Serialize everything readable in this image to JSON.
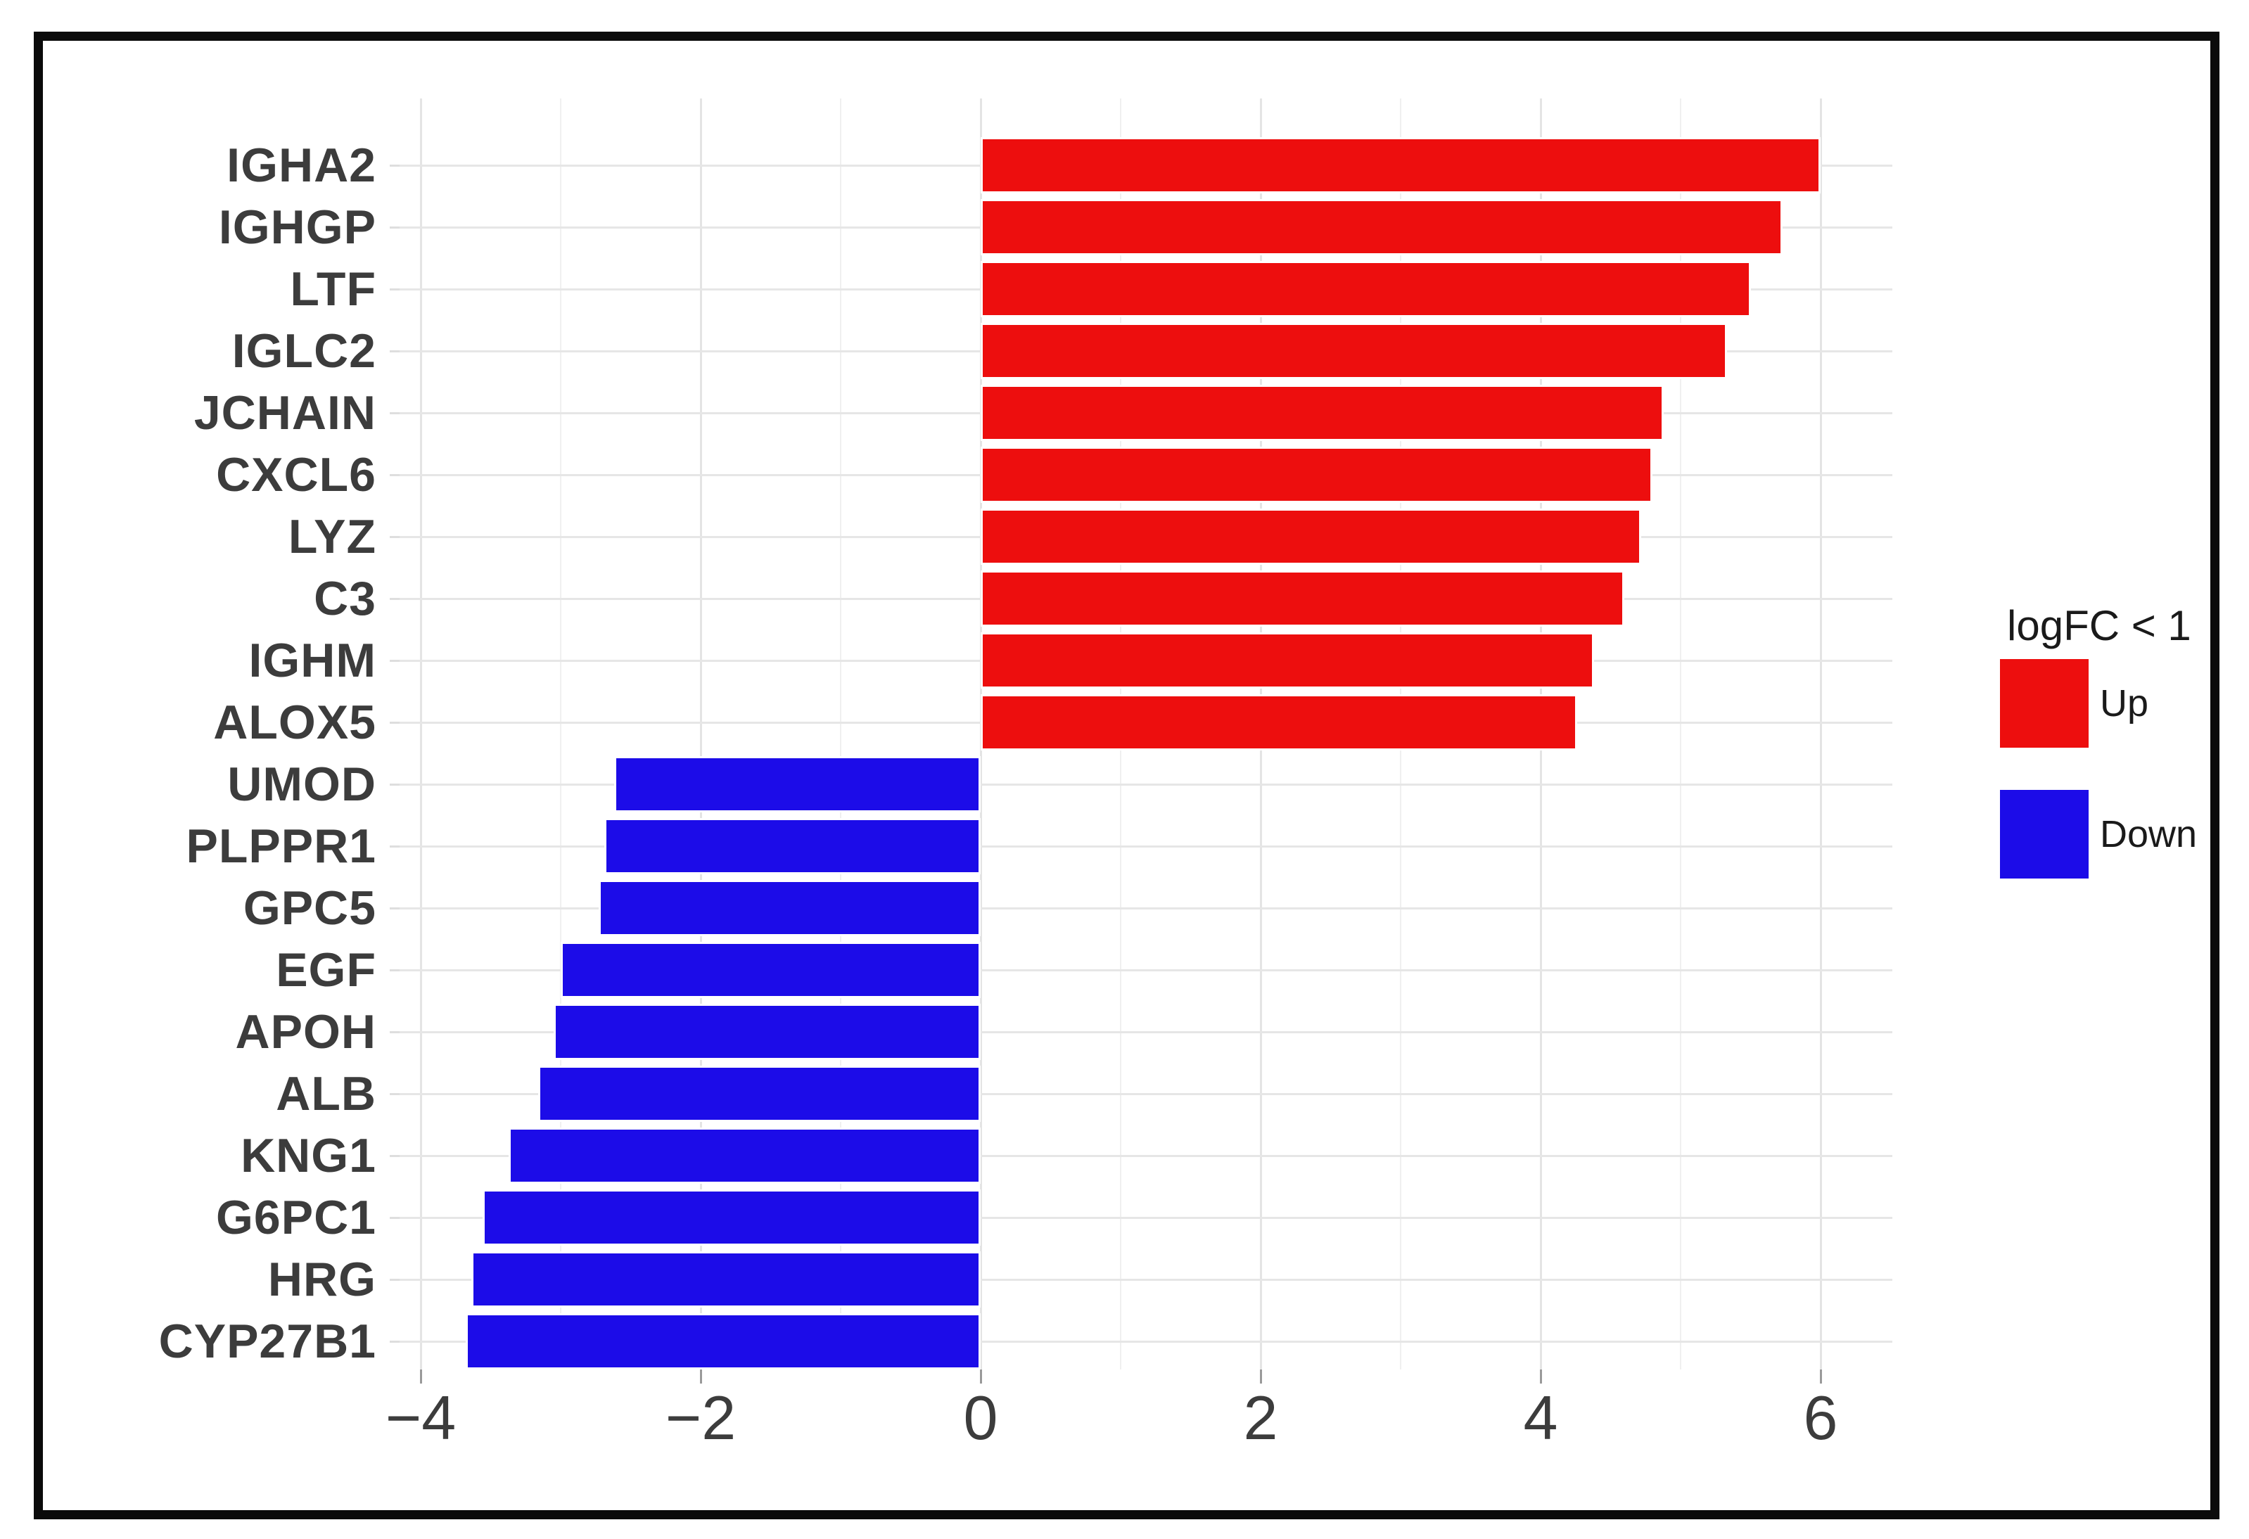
{
  "chart_data": {
    "type": "bar",
    "orientation": "horizontal",
    "title": "",
    "xlabel": "",
    "ylabel": "",
    "categories": [
      "IGHA2",
      "IGHGP",
      "LTF",
      "IGLC2",
      "JCHAIN",
      "CXCL6",
      "LYZ",
      "C3",
      "IGHM",
      "ALOX5",
      "UMOD",
      "PLPPR1",
      "GPC5",
      "EGF",
      "APOH",
      "ALB",
      "KNG1",
      "G6PC1",
      "HRG",
      "CYP27B1"
    ],
    "values": [
      6.0,
      5.73,
      5.5,
      5.33,
      4.88,
      4.8,
      4.72,
      4.6,
      4.38,
      4.26,
      -2.62,
      -2.69,
      -2.73,
      -3.0,
      -3.05,
      -3.16,
      -3.37,
      -3.56,
      -3.64,
      -3.68
    ],
    "groups": [
      "Up",
      "Up",
      "Up",
      "Up",
      "Up",
      "Up",
      "Up",
      "Up",
      "Up",
      "Up",
      "Down",
      "Down",
      "Down",
      "Down",
      "Down",
      "Down",
      "Down",
      "Down",
      "Down",
      "Down"
    ],
    "x_ticks": [
      -4,
      -2,
      0,
      2,
      4,
      6
    ],
    "x_tick_labels": [
      "−4",
      "−2",
      "0",
      "2",
      "4",
      "6"
    ],
    "x_minor_gridlines": [
      -3,
      -1,
      1,
      3,
      5
    ],
    "xlim": [
      -4.1,
      6.55
    ],
    "grid": "major+minor",
    "legend": {
      "title": "logFC < 1",
      "position": "right",
      "entries": [
        {
          "label": "Up",
          "color": "#ed0e0e"
        },
        {
          "label": "Down",
          "color": "#1c0ce8"
        }
      ]
    }
  },
  "colors": {
    "up_bar": "#ed0e0e",
    "down_bar": "#1c0ce8",
    "bar_border": "#ffffff",
    "grid_major": "#e4e4e4",
    "grid_minor": "#f0f0f0",
    "axis_text": "#3c3c3c",
    "legend_text": "#1a1a1a",
    "frame": "#0b0b0b",
    "background": "#ffffff"
  }
}
